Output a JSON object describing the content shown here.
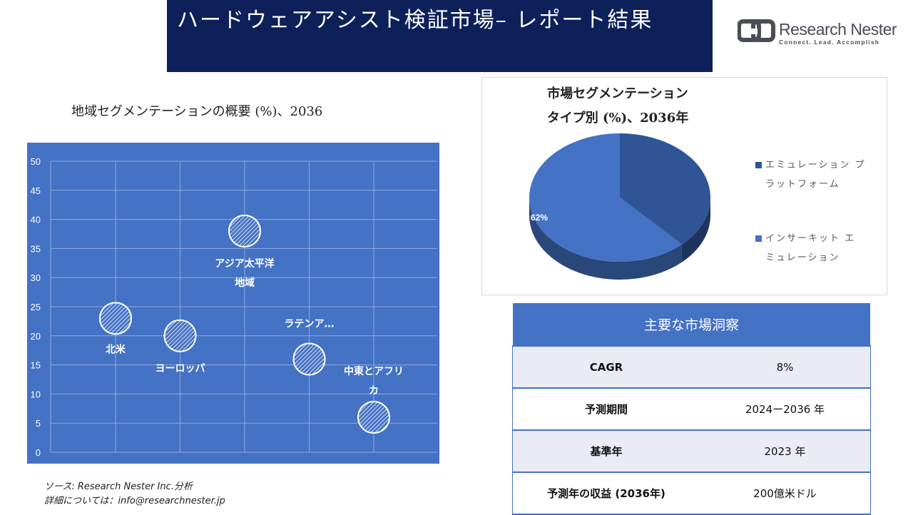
{
  "header": {
    "title": "ハードウェアアシスト検証市場– レポート結果"
  },
  "logo": {
    "name": "Research Nester",
    "tagline": "Connect. Lead. Accomplish"
  },
  "bubble_title": "地域セグメンテーションの概要 (%)、2036",
  "pie_title_line1": "市場セグメンテーション",
  "pie_title_line2": "タイプ別 (%)、2036年",
  "colors": {
    "header_bg": "#0d2059",
    "plot_bg": "#4472c4",
    "pie_dark": "#2f5597",
    "pie_light": "#4472c4",
    "table_header": "#4472c4"
  },
  "chart_data": [
    {
      "type": "scatter",
      "title": "地域セグメンテーションの概要 (%)、2036",
      "ylim": [
        0,
        50
      ],
      "yticks": [
        0,
        5,
        10,
        15,
        20,
        25,
        30,
        35,
        40,
        45,
        50
      ],
      "grid": true,
      "points": [
        {
          "label": "北米",
          "x": 1,
          "y": 23
        },
        {
          "label": "ヨーロッパ",
          "x": 2,
          "y": 20
        },
        {
          "label": "アジア太平洋地域",
          "x": 3,
          "y": 38
        },
        {
          "label": "ラテンア…",
          "x": 4,
          "y": 16
        },
        {
          "label": "中東とアフリカ",
          "x": 5,
          "y": 6
        }
      ]
    },
    {
      "type": "pie",
      "title": "市場セグメンテーション タイプ別 (%)、2036年",
      "legend_position": "right",
      "slices": [
        {
          "label": "エミュレーションプラットフォーム",
          "value": 38,
          "color": "#2f5597",
          "shown_label": ""
        },
        {
          "label": "インサーキットエミュレーション",
          "value": 62,
          "color": "#4472c4",
          "shown_label": "62%"
        }
      ]
    }
  ],
  "legend": [
    {
      "line1": "エミュレーション プ",
      "line2": "ラットフォーム"
    },
    {
      "line1": "インサーキット エ",
      "line2": "ミュレーション"
    }
  ],
  "table": {
    "header": "主要な市場洞察",
    "rows": [
      {
        "key": "CAGR",
        "value": "8%"
      },
      {
        "key": "予測期間",
        "value": "2024ー2036 年"
      },
      {
        "key": "基準年",
        "value": "2023 年"
      },
      {
        "key": "予測年の収益 (2036年)",
        "value": "200億米ドル"
      }
    ]
  },
  "source": {
    "line1": "ソース: Research Nester Inc.分析",
    "line2": "詳細については：info@researchnester.jp"
  }
}
